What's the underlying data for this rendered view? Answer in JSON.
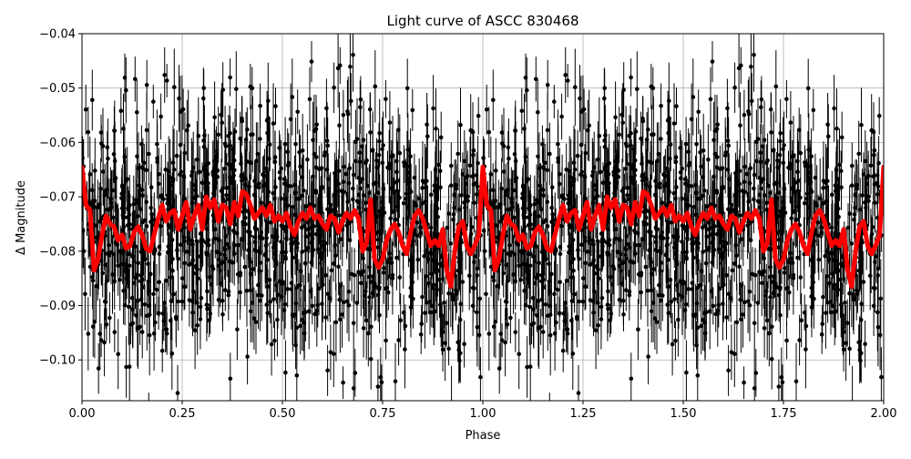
{
  "chart_data": {
    "type": "scatter",
    "title": "Light curve of ASCC 830468",
    "xlabel": "Phase",
    "ylabel": "Δ Magnitude",
    "xlim": [
      0.0,
      2.0
    ],
    "ylim": [
      -0.04,
      -0.1075
    ],
    "y_inverted": true,
    "grid": true,
    "x_ticks": [
      0.0,
      0.25,
      0.5,
      0.75,
      1.0,
      1.25,
      1.5,
      1.75,
      2.0
    ],
    "x_tick_labels": [
      "0.00",
      "0.25",
      "0.50",
      "0.75",
      "1.00",
      "1.25",
      "1.50",
      "1.75",
      "2.00"
    ],
    "y_ticks": [
      -0.04,
      -0.05,
      -0.06,
      -0.07,
      -0.08,
      -0.09,
      -0.1
    ],
    "y_tick_labels": [
      "−0.04",
      "−0.05",
      "−0.06",
      "−0.07",
      "−0.08",
      "−0.09",
      "−0.10"
    ],
    "series": [
      {
        "kind": "errorbar-points",
        "color": "#000000",
        "points_per_cycle": 1250,
        "mean": -0.0755,
        "scatter_std": 0.0115,
        "typical_error": 0.005
      },
      {
        "kind": "binned-curve",
        "color": "#ff0000",
        "x": [
          0.0,
          0.01,
          0.02,
          0.03,
          0.04,
          0.05,
          0.06,
          0.07,
          0.08,
          0.09,
          0.1,
          0.11,
          0.12,
          0.13,
          0.14,
          0.15,
          0.16,
          0.17,
          0.18,
          0.19,
          0.2,
          0.21,
          0.22,
          0.23,
          0.24,
          0.25,
          0.26,
          0.27,
          0.28,
          0.29,
          0.3,
          0.31,
          0.32,
          0.33,
          0.34,
          0.35,
          0.36,
          0.37,
          0.38,
          0.39,
          0.4,
          0.41,
          0.42,
          0.43,
          0.44,
          0.45,
          0.46,
          0.47,
          0.48,
          0.49,
          0.5,
          0.51,
          0.52,
          0.53,
          0.54,
          0.55,
          0.56,
          0.57,
          0.58,
          0.59,
          0.6,
          0.61,
          0.62,
          0.63,
          0.64,
          0.65,
          0.66,
          0.67,
          0.68,
          0.69,
          0.7,
          0.71,
          0.72,
          0.73,
          0.74,
          0.75,
          0.76,
          0.77,
          0.78,
          0.79,
          0.8,
          0.81,
          0.82,
          0.83,
          0.84,
          0.85,
          0.86,
          0.87,
          0.88,
          0.89,
          0.9,
          0.91,
          0.92,
          0.93,
          0.94,
          0.95,
          0.96,
          0.97,
          0.98,
          0.99,
          1.0
        ],
        "y": [
          -0.0645,
          -0.0715,
          -0.0725,
          -0.0835,
          -0.0815,
          -0.077,
          -0.0735,
          -0.075,
          -0.0755,
          -0.078,
          -0.077,
          -0.0795,
          -0.079,
          -0.0765,
          -0.0755,
          -0.077,
          -0.0795,
          -0.08,
          -0.077,
          -0.074,
          -0.0715,
          -0.0745,
          -0.073,
          -0.0725,
          -0.076,
          -0.0735,
          -0.071,
          -0.076,
          -0.0735,
          -0.0715,
          -0.076,
          -0.07,
          -0.072,
          -0.0705,
          -0.0745,
          -0.0715,
          -0.072,
          -0.075,
          -0.071,
          -0.0735,
          -0.069,
          -0.0695,
          -0.0715,
          -0.074,
          -0.073,
          -0.072,
          -0.0735,
          -0.0715,
          -0.0745,
          -0.0735,
          -0.0745,
          -0.073,
          -0.0755,
          -0.077,
          -0.0745,
          -0.073,
          -0.074,
          -0.072,
          -0.074,
          -0.0735,
          -0.075,
          -0.076,
          -0.0735,
          -0.074,
          -0.0765,
          -0.0745,
          -0.073,
          -0.074,
          -0.0725,
          -0.074,
          -0.08,
          -0.0785,
          -0.0705,
          -0.0815,
          -0.083,
          -0.0815,
          -0.078,
          -0.076,
          -0.075,
          -0.0765,
          -0.079,
          -0.0805,
          -0.0765,
          -0.0735,
          -0.0725,
          -0.074,
          -0.0765,
          -0.079,
          -0.078,
          -0.079,
          -0.076,
          -0.0835,
          -0.0865,
          -0.08,
          -0.0755,
          -0.0745,
          -0.079,
          -0.0805,
          -0.079,
          -0.077,
          -0.0645
        ]
      }
    ]
  }
}
